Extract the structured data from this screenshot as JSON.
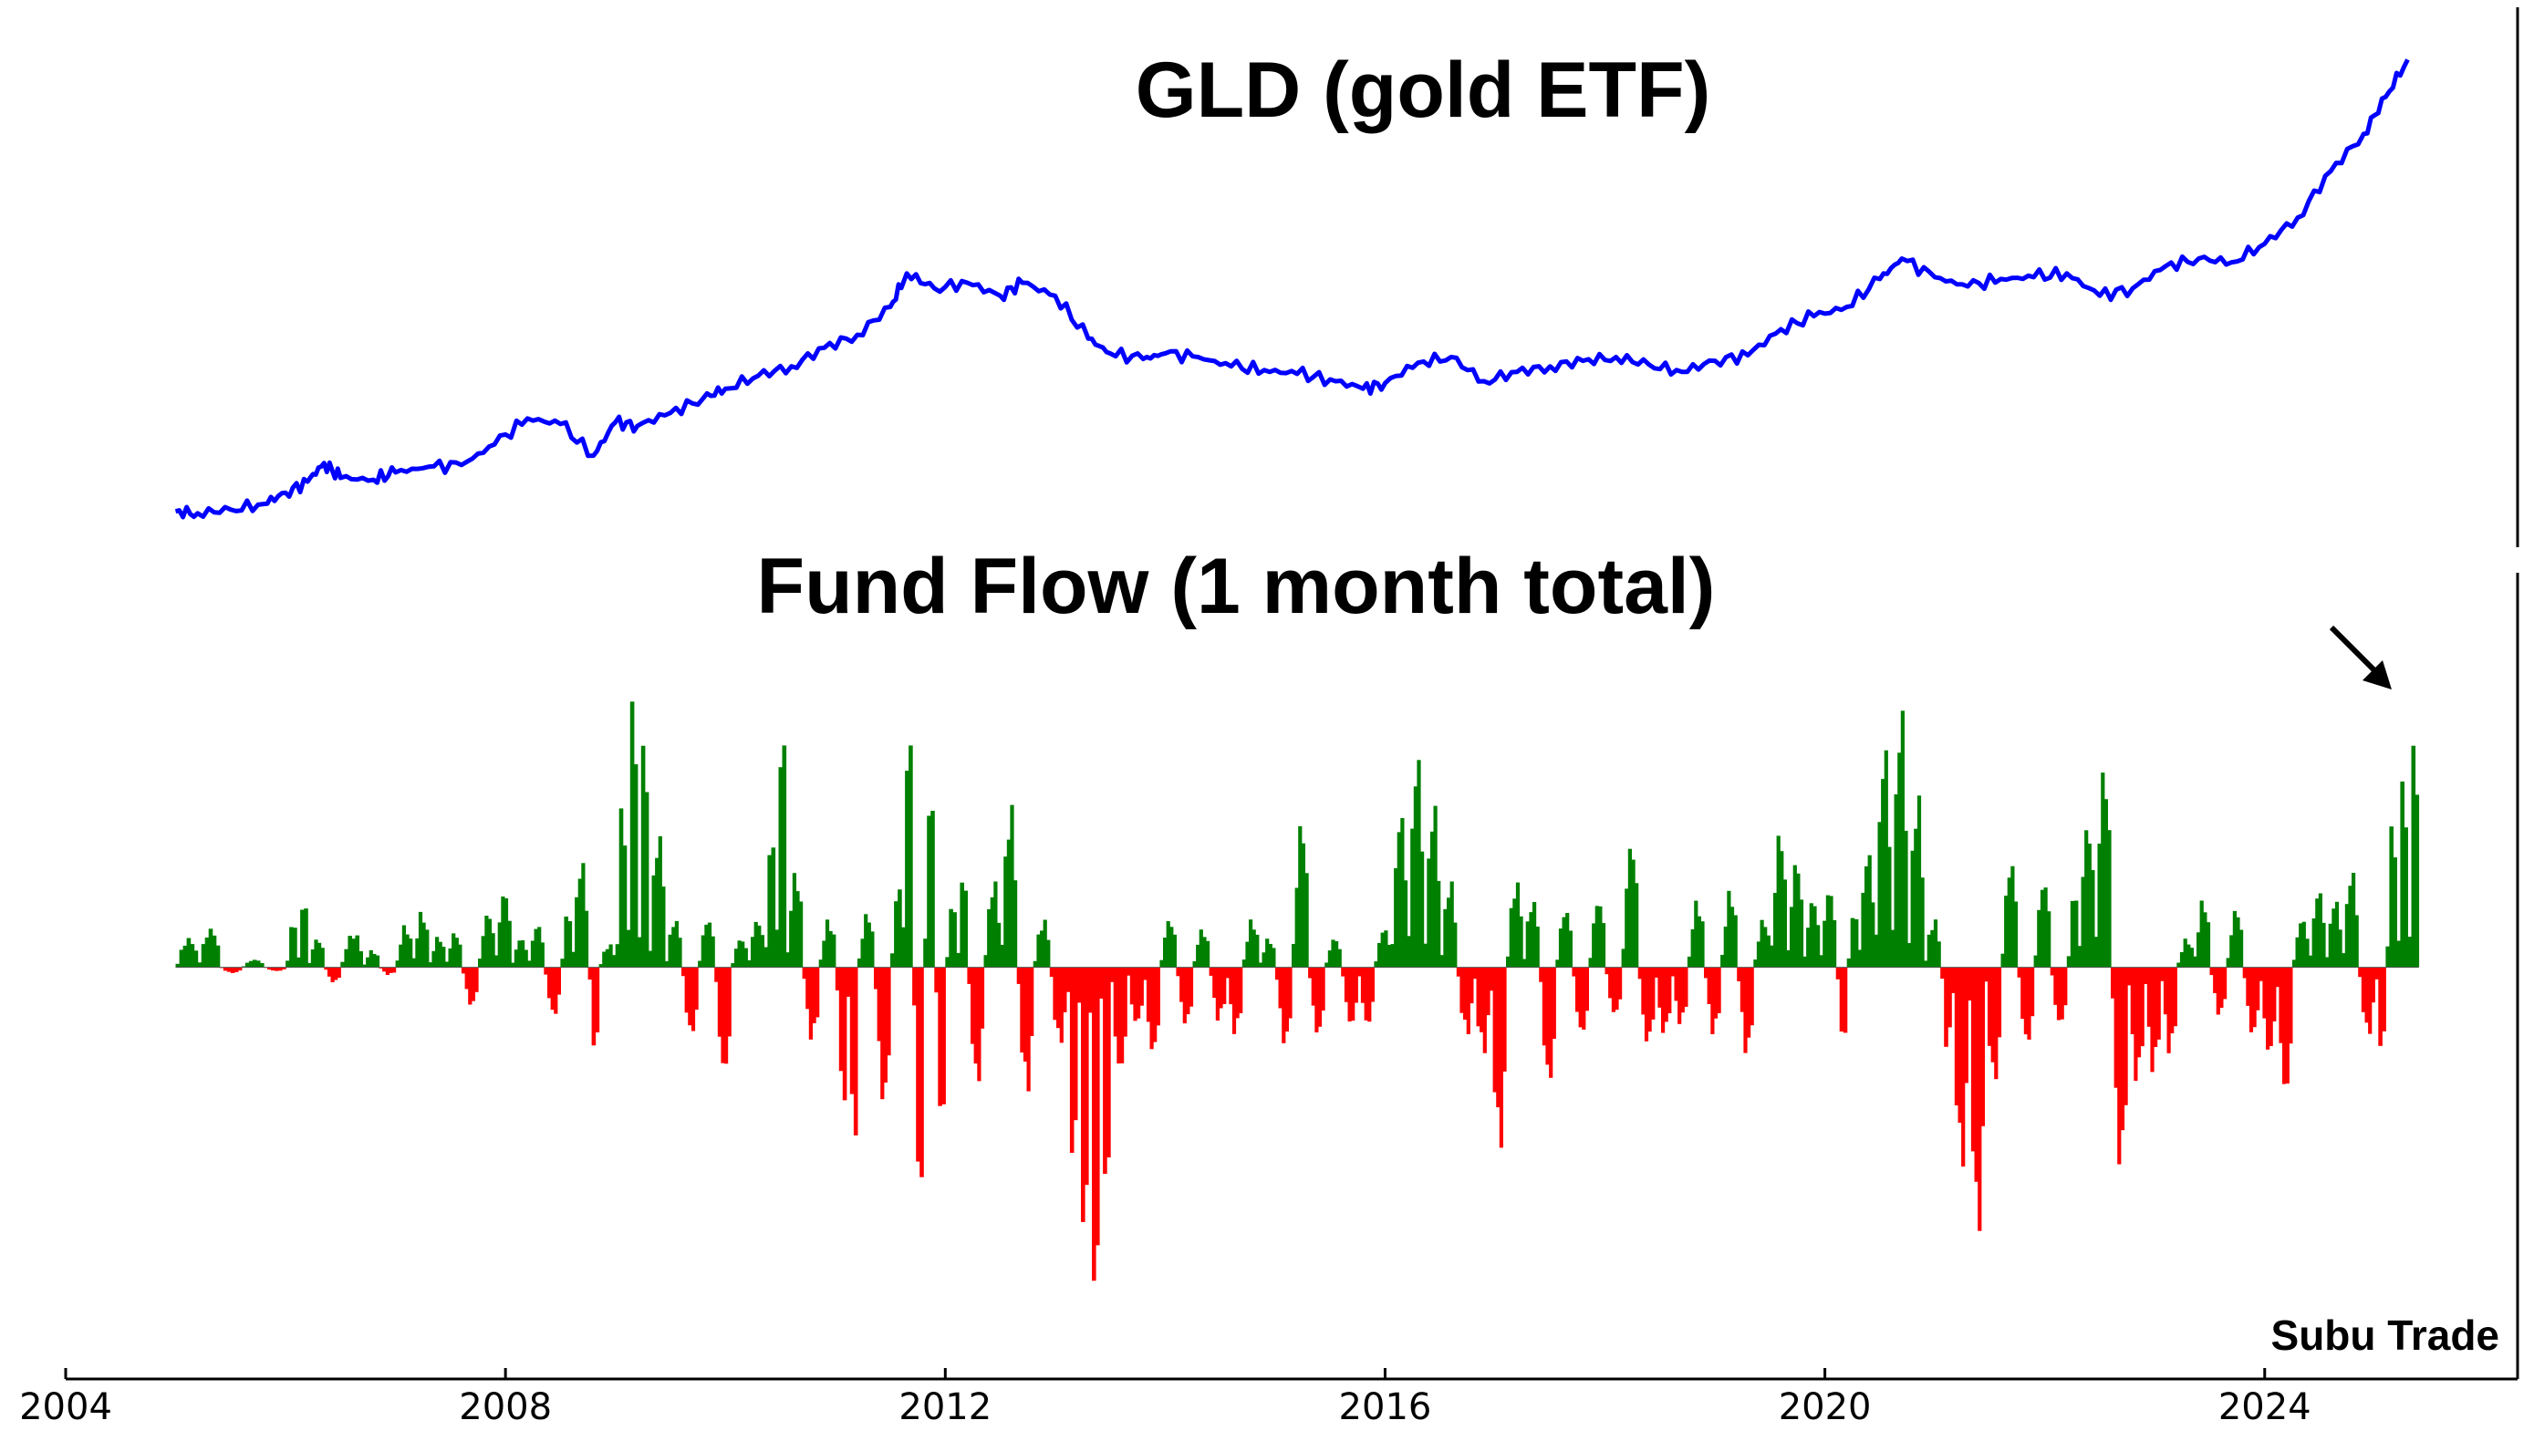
{
  "chart_data": [
    {
      "type": "line",
      "title": "GLD (gold ETF)",
      "color": "#0000ff",
      "x": [
        2005.0,
        2005.2,
        2005.5,
        2005.8,
        2006.0,
        2006.2,
        2006.35,
        2006.5,
        2006.8,
        2007.0,
        2007.3,
        2007.6,
        2007.9,
        2008.2,
        2008.5,
        2008.8,
        2009.0,
        2009.2,
        2009.5,
        2009.8,
        2010.0,
        2010.3,
        2010.6,
        2010.9,
        2011.2,
        2011.5,
        2011.65,
        2011.9,
        2012.2,
        2012.5,
        2012.7,
        2013.0,
        2013.3,
        2013.5,
        2013.8,
        2014.0,
        2014.3,
        2014.6,
        2014.9,
        2015.2,
        2015.5,
        2015.8,
        2016.0,
        2016.3,
        2016.6,
        2016.9,
        2017.2,
        2017.5,
        2017.8,
        2018.1,
        2018.4,
        2018.7,
        2019.0,
        2019.3,
        2019.6,
        2019.9,
        2020.2,
        2020.5,
        2020.7,
        2021.0,
        2021.3,
        2021.6,
        2021.9,
        2022.2,
        2022.5,
        2022.8,
        2023.1,
        2023.4,
        2023.7,
        2024.0,
        2024.3,
        2024.6,
        2024.9,
        2025.1,
        2025.3
      ],
      "values": [
        42,
        41,
        43,
        46,
        52,
        58,
        68,
        60,
        59,
        63,
        66,
        67,
        78,
        92,
        89,
        72,
        90,
        88,
        95,
        103,
        108,
        115,
        120,
        130,
        137,
        152,
        170,
        162,
        165,
        158,
        165,
        158,
        135,
        127,
        124,
        127,
        125,
        120,
        118,
        116,
        113,
        108,
        111,
        122,
        125,
        112,
        117,
        120,
        123,
        125,
        121,
        117,
        123,
        126,
        140,
        147,
        152,
        167,
        178,
        168,
        163,
        167,
        168,
        170,
        158,
        162,
        174,
        178,
        176,
        186,
        200,
        225,
        245,
        265,
        285
      ],
      "ylim": [
        35,
        295
      ]
    },
    {
      "type": "bar",
      "title": "Fund Flow (1 month total)",
      "positive_color": "#008000",
      "negative_color": "#ff0000",
      "x": [
        2005.0,
        2005.2,
        2005.4,
        2005.6,
        2005.8,
        2006.0,
        2006.1,
        2006.2,
        2006.35,
        2006.5,
        2006.7,
        2006.85,
        2007.0,
        2007.15,
        2007.3,
        2007.45,
        2007.6,
        2007.75,
        2007.9,
        2008.05,
        2008.2,
        2008.35,
        2008.5,
        2008.6,
        2008.75,
        2008.85,
        2009.0,
        2009.1,
        2009.2,
        2009.3,
        2009.45,
        2009.6,
        2009.75,
        2009.9,
        2010.05,
        2010.2,
        2010.35,
        2010.45,
        2010.55,
        2010.7,
        2010.85,
        2011.0,
        2011.1,
        2011.2,
        2011.35,
        2011.5,
        2011.6,
        2011.7,
        2011.8,
        2011.9,
        2012.0,
        2012.1,
        2012.2,
        2012.35,
        2012.5,
        2012.65,
        2012.8,
        2012.95,
        2013.1,
        2013.2,
        2013.3,
        2013.4,
        2013.5,
        2013.65,
        2013.8,
        2013.95,
        2014.1,
        2014.25,
        2014.4,
        2014.55,
        2014.7,
        2014.85,
        2015.0,
        2015.15,
        2015.3,
        2015.45,
        2015.6,
        2015.75,
        2015.9,
        2016.05,
        2016.2,
        2016.35,
        2016.5,
        2016.65,
        2016.8,
        2016.95,
        2017.1,
        2017.25,
        2017.4,
        2017.55,
        2017.7,
        2017.85,
        2018.0,
        2018.15,
        2018.3,
        2018.45,
        2018.6,
        2018.75,
        2018.9,
        2019.05,
        2019.2,
        2019.35,
        2019.5,
        2019.65,
        2019.8,
        2019.95,
        2020.1,
        2020.2,
        2020.3,
        2020.45,
        2020.6,
        2020.75,
        2020.9,
        2021.05,
        2021.15,
        2021.3,
        2021.45,
        2021.6,
        2021.75,
        2021.9,
        2022.05,
        2022.2,
        2022.3,
        2022.45,
        2022.6,
        2022.75,
        2022.9,
        2023.05,
        2023.2,
        2023.35,
        2023.5,
        2023.65,
        2023.8,
        2023.95,
        2024.1,
        2024.25,
        2024.4,
        2024.55,
        2024.7,
        2024.85,
        2025.0,
        2025.1,
        2025.2,
        2025.3
      ],
      "values": [
        1.5,
        2.0,
        -0.3,
        0.4,
        -0.2,
        2.4,
        3.5,
        1.5,
        -0.8,
        1.8,
        0.9,
        -0.4,
        2.2,
        2.9,
        1.6,
        1.8,
        -2.0,
        2.8,
        3.9,
        1.5,
        2.2,
        -2.5,
        3.0,
        5.5,
        -4.5,
        1.2,
        9.0,
        15.0,
        12.5,
        7.0,
        2.5,
        -3.5,
        2.5,
        -5.5,
        1.5,
        2.5,
        7.0,
        12.8,
        5.0,
        -3.8,
        2.5,
        -7.5,
        -9.5,
        2.8,
        -7.0,
        4.5,
        13.0,
        -12.5,
        9.5,
        -8.5,
        3.5,
        5.0,
        -6.0,
        4.5,
        8.5,
        -6.5,
        2.5,
        -4.0,
        -10.5,
        -14.5,
        -18.0,
        -12.0,
        -5.5,
        -3.0,
        -4.5,
        2.5,
        -3.0,
        2.0,
        -2.8,
        -3.5,
        2.5,
        1.5,
        -4.0,
        7.5,
        -3.5,
        1.5,
        -3.0,
        -3.0,
        2.0,
        8.0,
        11.0,
        8.5,
        4.5,
        -3.5,
        -4.5,
        -9.5,
        4.5,
        3.5,
        -6.0,
        3.0,
        -3.5,
        3.5,
        -2.5,
        6.5,
        -4.0,
        -3.5,
        -3.0,
        3.5,
        -3.5,
        4.0,
        -4.5,
        2.5,
        7.0,
        5.5,
        3.5,
        4.0,
        -4.0,
        3.0,
        6.0,
        11.5,
        13.5,
        9.0,
        2.5,
        -4.5,
        -10.5,
        -14.0,
        -6.0,
        5.5,
        -4.0,
        4.5,
        -3.0,
        4.0,
        7.5,
        10.5,
        -10.5,
        -6.0,
        -5.5,
        -4.5,
        1.5,
        3.5,
        -2.5,
        3.0,
        -3.5,
        -4.5,
        -6.5,
        2.5,
        4.0,
        3.5,
        5.0,
        -3.5,
        -4.5,
        8.0,
        10.5,
        12.5
      ],
      "ylim": [
        -19,
        18
      ]
    }
  ],
  "x_axis": {
    "ticks": [
      2004,
      2008,
      2012,
      2016,
      2020,
      2024
    ],
    "range": [
      2004,
      2026.3
    ]
  },
  "annotation": {
    "arrow": "pointing to the latest fund flow bar"
  },
  "watermark": "Subu Trade"
}
